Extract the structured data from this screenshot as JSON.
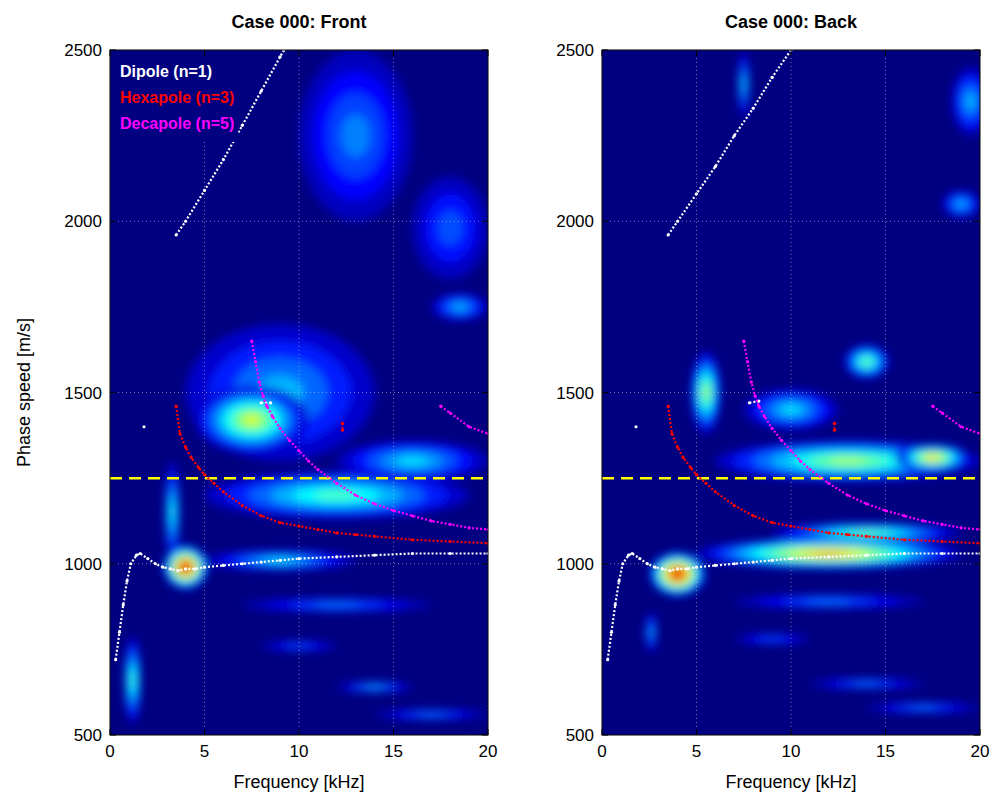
{
  "chart_data": [
    {
      "type": "heatmap",
      "title": "Case 000: Front",
      "xlabel": "Frequency [kHz]",
      "ylabel": "Phase speed [m/s]",
      "xlim": [
        0,
        20
      ],
      "ylim": [
        500,
        2500
      ],
      "xticks": [
        0,
        5,
        10,
        15,
        20
      ],
      "yticks": [
        500,
        1000,
        1500,
        2000,
        2500
      ],
      "grid": true,
      "legend": "upper left",
      "zlim": [
        0,
        1
      ],
      "heat_blobs": [
        {
          "x": 1.2,
          "y": 660,
          "x_radius": 0.45,
          "y_radius": 130,
          "value": 0.45
        },
        {
          "x": 3.3,
          "y": 1150,
          "x_radius": 0.4,
          "y_radius": 150,
          "value": 0.4
        },
        {
          "x": 9,
          "y": 1500,
          "x_radius": 5,
          "y_radius": 200,
          "value": 0.3
        },
        {
          "x": 12,
          "y": 1200,
          "x_radius": 7,
          "y_radius": 70,
          "value": 0.45
        },
        {
          "x": 7.5,
          "y": 1420,
          "x_radius": 3,
          "y_radius": 100,
          "value": 0.6
        },
        {
          "x": 16,
          "y": 1300,
          "x_radius": 4,
          "y_radius": 60,
          "value": 0.35
        },
        {
          "x": 9,
          "y": 1010,
          "x_radius": 4,
          "y_radius": 30,
          "value": 0.35
        },
        {
          "x": 4,
          "y": 990,
          "x_radius": 1.2,
          "y_radius": 65,
          "value": 1.0
        },
        {
          "x": 13,
          "y": 2250,
          "x_radius": 3,
          "y_radius": 250,
          "value": 0.25
        },
        {
          "x": 18.5,
          "y": 1750,
          "x_radius": 1.5,
          "y_radius": 40,
          "value": 0.3
        },
        {
          "x": 18,
          "y": 1980,
          "x_radius": 2,
          "y_radius": 150,
          "value": 0.2
        },
        {
          "x": 14,
          "y": 640,
          "x_radius": 2,
          "y_radius": 15,
          "value": 0.3
        },
        {
          "x": 12,
          "y": 880,
          "x_radius": 5,
          "y_radius": 20,
          "value": 0.25
        },
        {
          "x": 17,
          "y": 560,
          "x_radius": 3,
          "y_radius": 15,
          "value": 0.25
        },
        {
          "x": 10,
          "y": 760,
          "x_radius": 2,
          "y_radius": 15,
          "value": 0.2
        }
      ],
      "threshold": {
        "value": 1250,
        "color": "#ffff00",
        "line_style": "dashed"
      },
      "series": [
        {
          "name": "Dipole (n=1)",
          "color": "#ffffff",
          "marker": "dot",
          "line_style": "dotted",
          "x": [
            0.3,
            0.5,
            0.7,
            0.9,
            1.1,
            1.4,
            1.6,
            2.0,
            2.4,
            2.8,
            3.2,
            3.6,
            4.0,
            4.5,
            5,
            6,
            7,
            8,
            9,
            10,
            12,
            14,
            16,
            18,
            20,
            null,
            1.8,
            null,
            8.0,
            8.5,
            null,
            3.5,
            4,
            5,
            6,
            7,
            8,
            9,
            9.2
          ],
          "values": [
            720,
            800,
            880,
            950,
            1000,
            1025,
            1030,
            1015,
            1000,
            990,
            985,
            980,
            985,
            985,
            990,
            995,
            1000,
            1005,
            1010,
            1015,
            1020,
            1025,
            1030,
            1030,
            1030,
            null,
            1400,
            null,
            1470,
            1470,
            null,
            1960,
            2000,
            2090,
            2180,
            2280,
            2380,
            2480,
            2500
          ]
        },
        {
          "name": "Hexapole (n=3)",
          "color": "#ff0000",
          "marker": "dot",
          "line_style": "dotted",
          "x": [
            3.5,
            3.7,
            4.0,
            4.3,
            4.7,
            5,
            5.5,
            6,
            7,
            8,
            9,
            10,
            11,
            12,
            13,
            14,
            16,
            18,
            20,
            null,
            12.3,
            12.3
          ],
          "values": [
            1460,
            1380,
            1340,
            1310,
            1280,
            1260,
            1235,
            1210,
            1170,
            1140,
            1120,
            1110,
            1100,
            1090,
            1085,
            1080,
            1070,
            1065,
            1060,
            null,
            1410,
            1390
          ]
        },
        {
          "name": "Decapole (n=5)",
          "color": "#ff00ff",
          "marker": "dot",
          "line_style": "dotted",
          "x": [
            7.5,
            7.7,
            7.9,
            8.1,
            8.3,
            8.6,
            9,
            9.5,
            10,
            10.5,
            11,
            12,
            13,
            14,
            15,
            16,
            17,
            18,
            19,
            20,
            null,
            17.5,
            18,
            19,
            20
          ],
          "values": [
            1650,
            1590,
            1530,
            1490,
            1460,
            1430,
            1395,
            1360,
            1330,
            1300,
            1275,
            1235,
            1200,
            1175,
            1155,
            1140,
            1125,
            1115,
            1105,
            1100,
            null,
            1460,
            1440,
            1400,
            1380
          ]
        }
      ]
    },
    {
      "type": "heatmap",
      "title": "Case 000: Back",
      "xlabel": "Frequency [kHz]",
      "xlim": [
        0,
        20
      ],
      "ylim": [
        500,
        2500
      ],
      "xticks": [
        0,
        5,
        10,
        15,
        20
      ],
      "yticks": [
        500,
        1000,
        1500,
        2000,
        2500
      ],
      "grid": true,
      "zlim": [
        0,
        1
      ],
      "heat_blobs": [
        {
          "x": 2.6,
          "y": 800,
          "x_radius": 0.3,
          "y_radius": 60,
          "value": 0.3
        },
        {
          "x": 13,
          "y": 1300,
          "x_radius": 7,
          "y_radius": 60,
          "value": 0.55
        },
        {
          "x": 17.5,
          "y": 1310,
          "x_radius": 2,
          "y_radius": 40,
          "value": 0.7
        },
        {
          "x": 5.5,
          "y": 1500,
          "x_radius": 0.8,
          "y_radius": 120,
          "value": 0.55
        },
        {
          "x": 14,
          "y": 1590,
          "x_radius": 1.2,
          "y_radius": 50,
          "value": 0.5
        },
        {
          "x": 10,
          "y": 1450,
          "x_radius": 2.5,
          "y_radius": 60,
          "value": 0.35
        },
        {
          "x": 14,
          "y": 1090,
          "x_radius": 5,
          "y_radius": 30,
          "value": 0.5
        },
        {
          "x": 12,
          "y": 1030,
          "x_radius": 7,
          "y_radius": 45,
          "value": 0.75
        },
        {
          "x": 4,
          "y": 970,
          "x_radius": 1.5,
          "y_radius": 65,
          "value": 1.0
        },
        {
          "x": 7.5,
          "y": 2400,
          "x_radius": 0.3,
          "y_radius": 100,
          "value": 0.35
        },
        {
          "x": 19.5,
          "y": 2350,
          "x_radius": 1,
          "y_radius": 100,
          "value": 0.3
        },
        {
          "x": 19,
          "y": 2050,
          "x_radius": 1,
          "y_radius": 40,
          "value": 0.3
        },
        {
          "x": 14,
          "y": 650,
          "x_radius": 3,
          "y_radius": 15,
          "value": 0.25
        },
        {
          "x": 17,
          "y": 580,
          "x_radius": 3,
          "y_radius": 15,
          "value": 0.25
        },
        {
          "x": 12,
          "y": 890,
          "x_radius": 5,
          "y_radius": 20,
          "value": 0.25
        },
        {
          "x": 9,
          "y": 780,
          "x_radius": 2,
          "y_radius": 15,
          "value": 0.2
        }
      ],
      "threshold": {
        "value": 1250,
        "color": "#ffff00",
        "line_style": "dashed"
      },
      "series": [
        {
          "color": "#ffffff",
          "marker": "dot",
          "line_style": "dotted",
          "x": [
            0.3,
            0.5,
            0.7,
            0.9,
            1.1,
            1.4,
            1.6,
            2.0,
            2.4,
            2.8,
            3.2,
            3.6,
            4.0,
            4.5,
            5,
            6,
            7,
            8,
            9,
            10,
            12,
            14,
            16,
            18,
            20,
            null,
            1.8,
            null,
            7.8,
            8.3,
            null,
            3.5,
            4,
            5,
            6,
            7,
            8,
            9,
            10
          ],
          "values": [
            720,
            800,
            880,
            950,
            1000,
            1025,
            1030,
            1015,
            1000,
            990,
            985,
            980,
            985,
            985,
            990,
            995,
            1000,
            1005,
            1010,
            1015,
            1020,
            1025,
            1030,
            1030,
            1030,
            null,
            1400,
            null,
            1470,
            1475,
            null,
            1960,
            2000,
            2080,
            2160,
            2250,
            2330,
            2420,
            2500
          ]
        },
        {
          "color": "#ff0000",
          "marker": "dot",
          "line_style": "dotted",
          "x": [
            3.5,
            3.7,
            4.0,
            4.3,
            4.7,
            5,
            5.5,
            6,
            7,
            8,
            9,
            10,
            11,
            12,
            13,
            14,
            16,
            18,
            20,
            null,
            12.3,
            12.3
          ],
          "values": [
            1460,
            1380,
            1340,
            1310,
            1280,
            1260,
            1235,
            1210,
            1170,
            1140,
            1120,
            1110,
            1100,
            1090,
            1085,
            1080,
            1070,
            1065,
            1060,
            null,
            1410,
            1390
          ]
        },
        {
          "color": "#ff00ff",
          "marker": "dot",
          "line_style": "dotted",
          "x": [
            7.5,
            7.7,
            7.9,
            8.1,
            8.3,
            8.6,
            9,
            9.5,
            10,
            10.5,
            11,
            12,
            13,
            14,
            15,
            16,
            17,
            18,
            19,
            20,
            null,
            17.5,
            18,
            19,
            20
          ],
          "values": [
            1650,
            1590,
            1530,
            1490,
            1460,
            1430,
            1395,
            1360,
            1330,
            1300,
            1275,
            1235,
            1200,
            1175,
            1155,
            1140,
            1125,
            1115,
            1105,
            1100,
            null,
            1460,
            1440,
            1400,
            1380
          ]
        }
      ]
    }
  ]
}
